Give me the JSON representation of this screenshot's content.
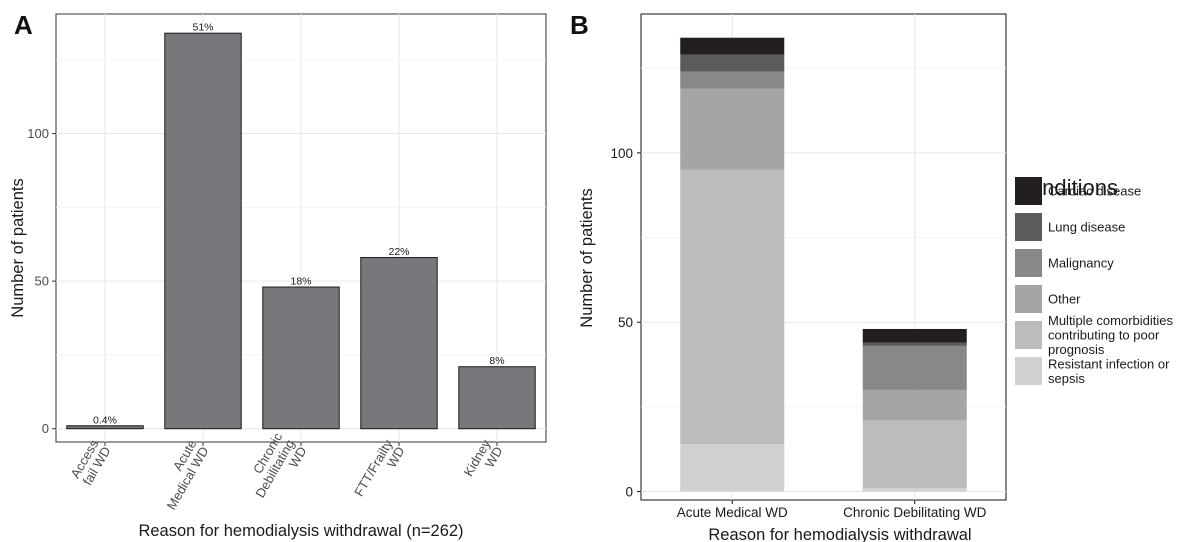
{
  "chart_data": [
    {
      "panel": "A",
      "type": "bar",
      "categories": [
        [
          "Access",
          "fail WD"
        ],
        [
          "Acute",
          "Medical WD"
        ],
        [
          "Chronic",
          "Debilitating",
          "WD"
        ],
        [
          "FTT/Frailty",
          "WD"
        ],
        [
          "Kidney",
          "WD"
        ]
      ],
      "values": [
        1,
        134,
        48,
        58,
        21
      ],
      "data_labels": [
        "0.4%",
        "51%",
        "18%",
        "22%",
        "8%"
      ],
      "xlabel": "Reason for hemodialysis withdrawal (n=262)",
      "ylabel": "Number of patients",
      "ylim": [
        -4.5,
        140.5
      ],
      "yticks": [
        0,
        50,
        100
      ],
      "bar_color": "#77787c",
      "grid": true
    },
    {
      "panel": "B",
      "type": "bar",
      "stacked": true,
      "categories": [
        "Acute Medical WD",
        "Chronic Debilitating WD"
      ],
      "series": [
        {
          "name": "Resistant infection or sepsis",
          "values": [
            14,
            1
          ],
          "color": "#d0d0d2"
        },
        {
          "name": "Multiple comorbidities contributing to poor prognosis",
          "values": [
            81,
            20
          ],
          "color": "#bcbcbe"
        },
        {
          "name": "Other",
          "values": [
            24,
            9
          ],
          "color": "#a5a5a7"
        },
        {
          "name": "Malignancy",
          "values": [
            5,
            13
          ],
          "color": "#88888b"
        },
        {
          "name": "Lung disease",
          "values": [
            5,
            1
          ],
          "color": "#5b5b5e"
        },
        {
          "name": "Cardiac disease",
          "values": [
            5,
            4
          ],
          "color": "#231f20"
        }
      ],
      "xlabel": "Reason for hemodialysis withdrawal",
      "ylabel": "Number of patients",
      "ylim": [
        -2.5,
        141
      ],
      "yticks": [
        0,
        50,
        100
      ],
      "legend_title": "Conditions",
      "legend_order": [
        [
          "Cardiac disease"
        ],
        [
          "Lung disease"
        ],
        [
          "Malignancy"
        ],
        [
          "Other"
        ],
        [
          "Multiple comorbidities",
          "contributing to poor",
          "prognosis"
        ],
        [
          "Resistant infection or",
          "sepsis"
        ]
      ],
      "legend_position": "right",
      "grid": true
    }
  ]
}
